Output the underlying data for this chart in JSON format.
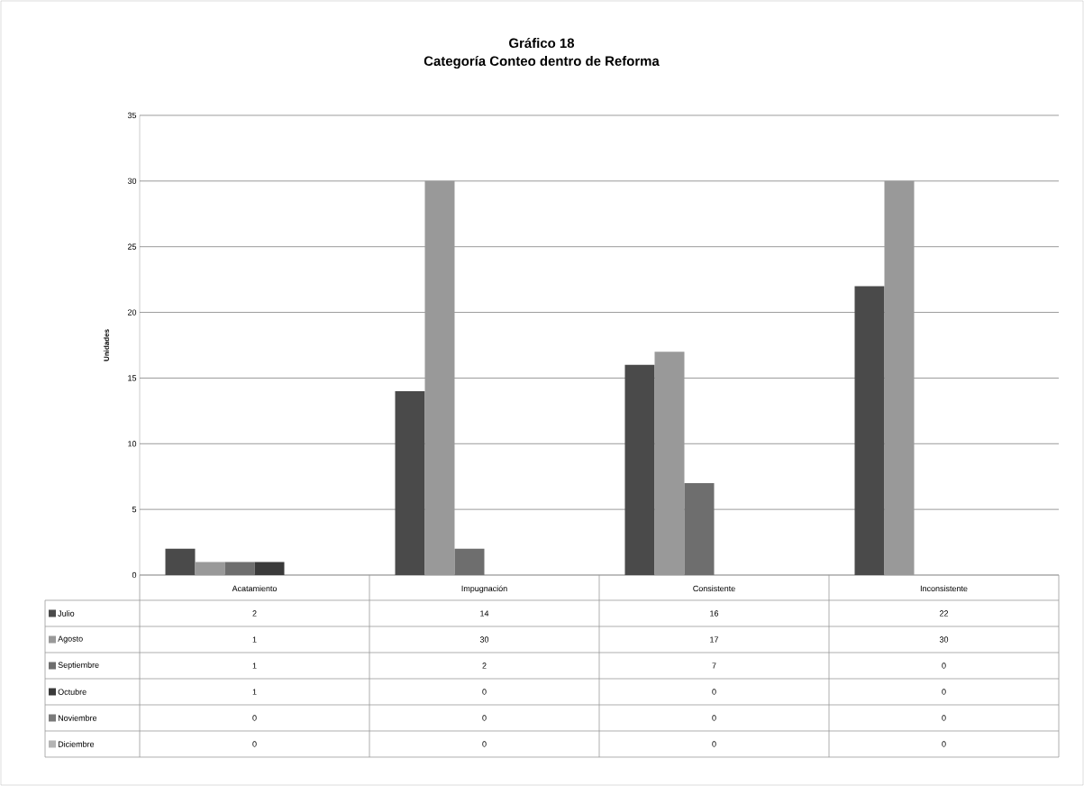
{
  "chart_data": {
    "type": "bar",
    "title": "Gráfico 18",
    "subtitle": "Categoría Conteo dentro de Reforma",
    "ylabel": "Unidades",
    "categories": [
      "Acatamiento",
      "Impugnación",
      "Consistente",
      "Inconsistente"
    ],
    "series": [
      {
        "name": "Julio",
        "color": "#4a4a4a",
        "values": [
          2,
          14,
          16,
          22
        ]
      },
      {
        "name": "Agosto",
        "color": "#999999",
        "values": [
          1,
          30,
          17,
          30
        ]
      },
      {
        "name": "Septiembre",
        "color": "#6e6e6e",
        "values": [
          1,
          2,
          7,
          0
        ]
      },
      {
        "name": "Octubre",
        "color": "#3a3a3a",
        "values": [
          1,
          0,
          0,
          0
        ]
      },
      {
        "name": "Noviembre",
        "color": "#7a7a7a",
        "values": [
          0,
          0,
          0,
          0
        ]
      },
      {
        "name": "Diciembre",
        "color": "#b4b4b4",
        "values": [
          0,
          0,
          0,
          0
        ]
      }
    ],
    "ylim": [
      0,
      35
    ],
    "yticks": [
      0,
      5,
      10,
      15,
      20,
      25,
      30,
      35
    ],
    "grid": "y",
    "legend": "bottom",
    "data_labels": true
  }
}
